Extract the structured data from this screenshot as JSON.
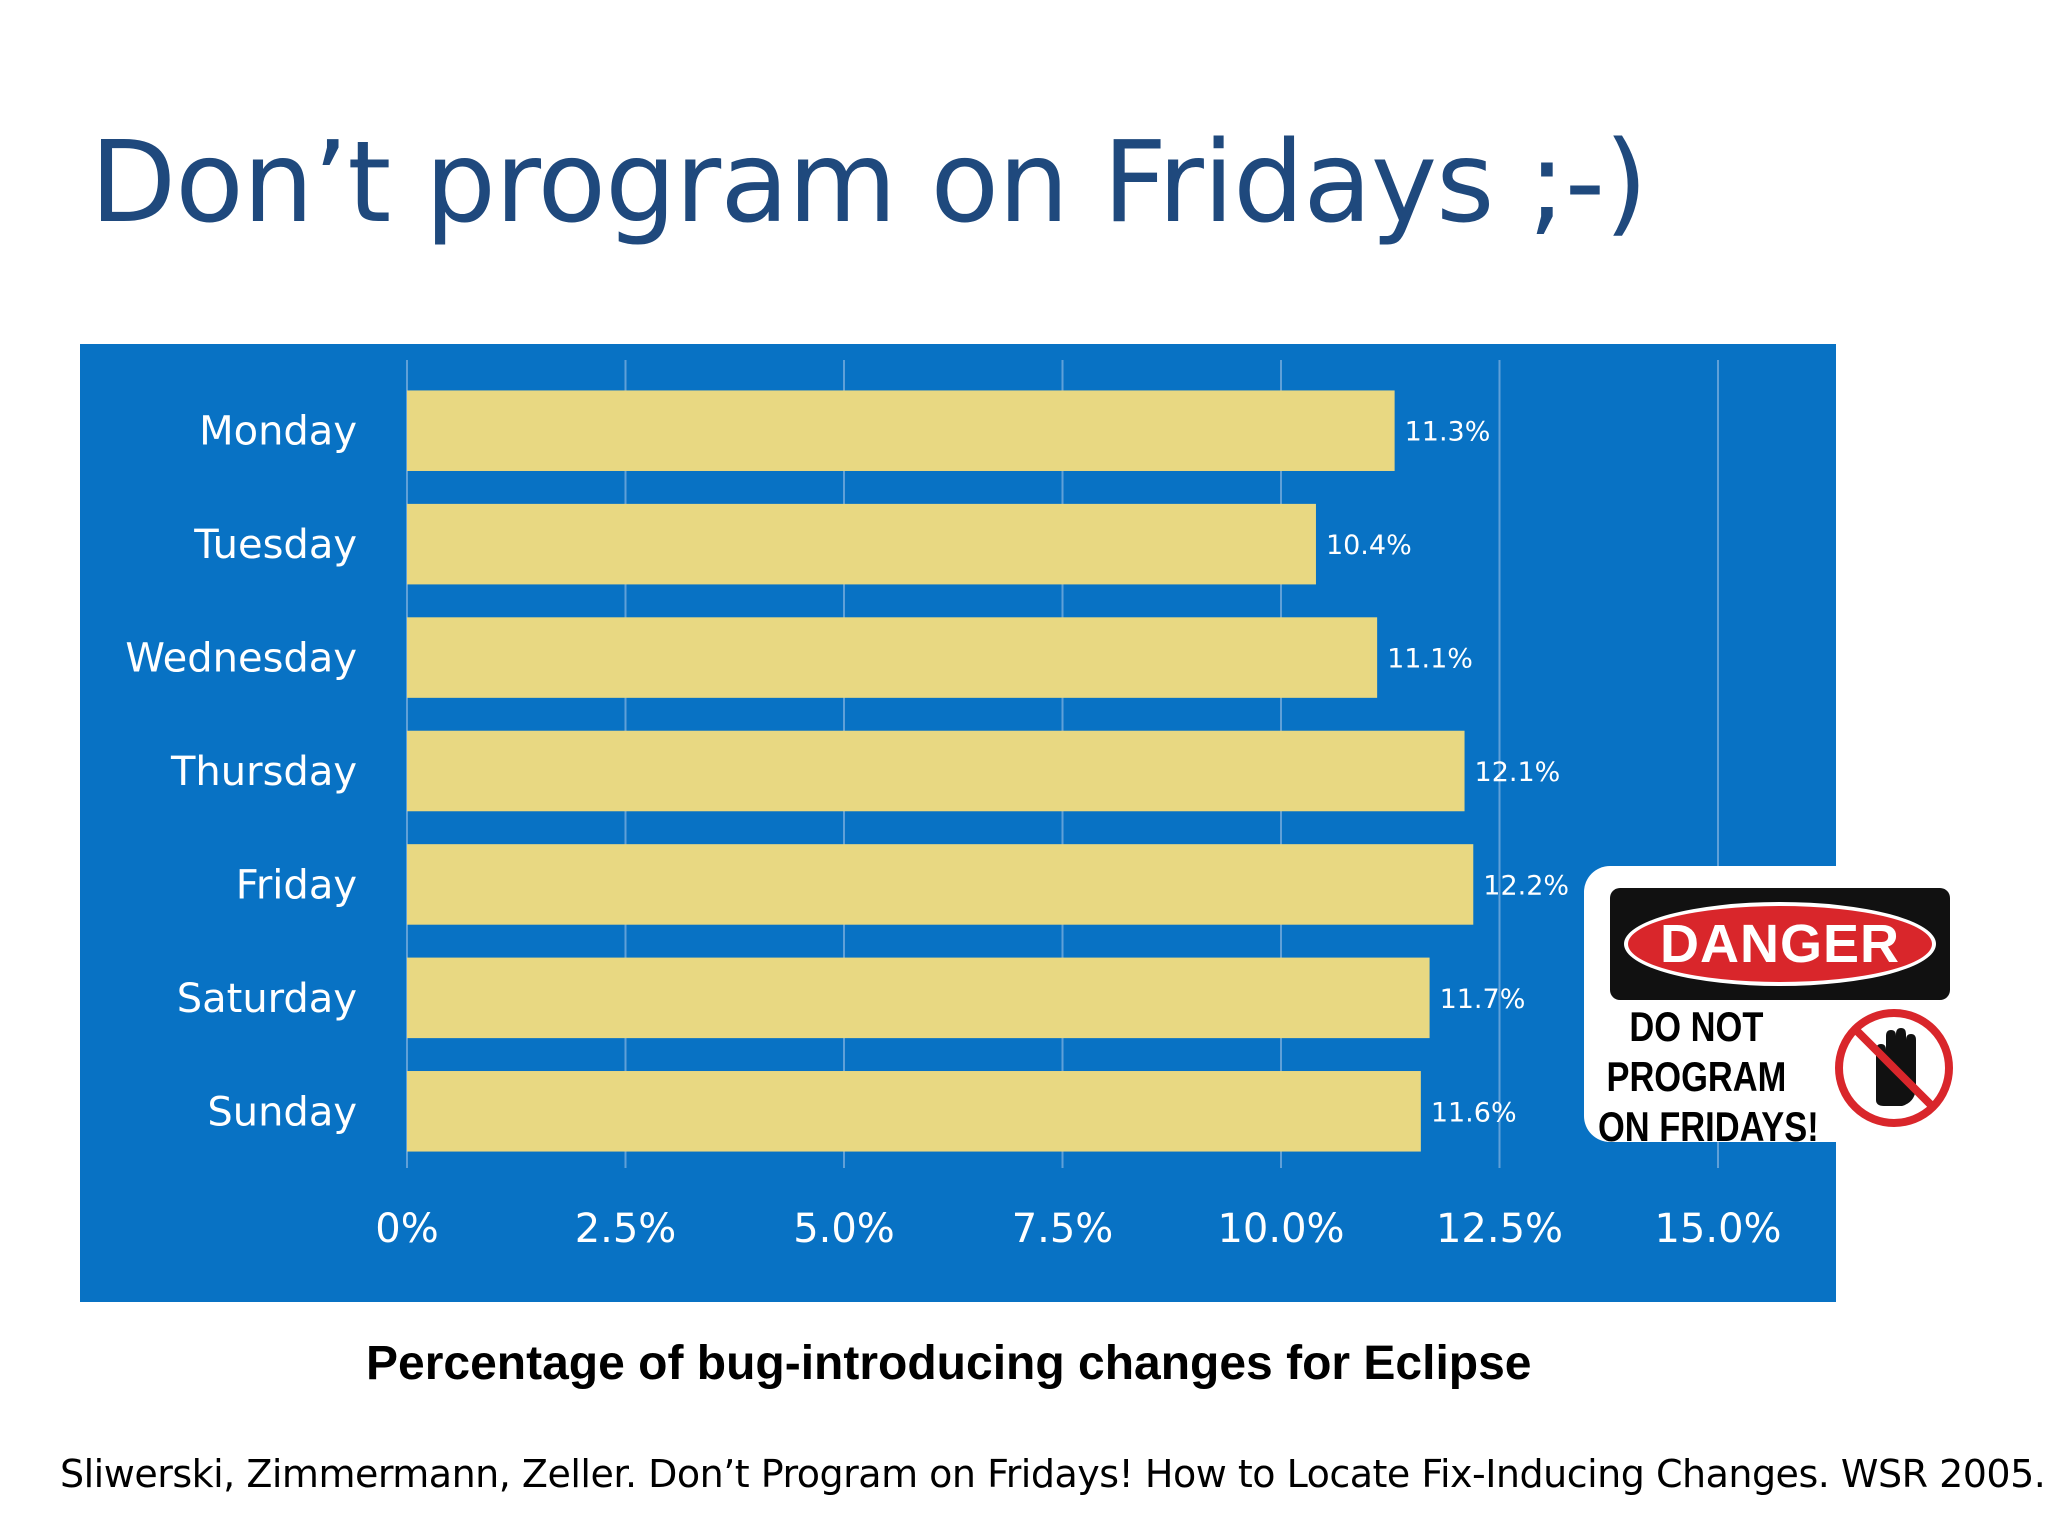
{
  "slide": {
    "title": "Don’t program on Fridays ;-)",
    "caption": "Percentage of bug-introducing changes for Eclipse",
    "citation": "Sliwerski, Zimmermann, Zeller. Don’t Program on Fridays! How to Locate Fix-Inducing Changes. WSR 2005."
  },
  "sign": {
    "header": "DANGER",
    "lines": [
      "DO NOT",
      "PROGRAM",
      "ON FRIDAYS!"
    ],
    "icon": "no-hand-icon"
  },
  "colors": {
    "title": "#1f497d",
    "panel": "#0872c4",
    "bar": "#e8d882",
    "danger_red": "#d9262b"
  },
  "chart_data": {
    "type": "bar",
    "orientation": "horizontal",
    "categories": [
      "Monday",
      "Tuesday",
      "Wednesday",
      "Thursday",
      "Friday",
      "Saturday",
      "Sunday"
    ],
    "values": [
      11.3,
      10.4,
      11.1,
      12.1,
      12.2,
      11.7,
      11.6
    ],
    "value_labels": [
      "11.3%",
      "10.4%",
      "11.1%",
      "12.1%",
      "12.2%",
      "11.7%",
      "11.6%"
    ],
    "xlim": [
      0,
      15
    ],
    "ticks": [
      0,
      2.5,
      5,
      7.5,
      10,
      12.5,
      15
    ],
    "tick_labels": [
      "0%",
      "2.5%",
      "5.0%",
      "7.5%",
      "10.0%",
      "12.5%",
      "15.0%"
    ],
    "grid": true,
    "title": "Percentage of bug-introducing changes for Eclipse"
  }
}
